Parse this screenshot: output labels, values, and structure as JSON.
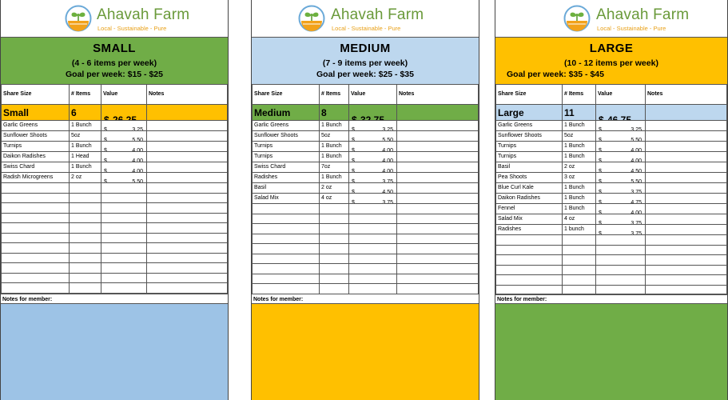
{
  "brand": {
    "name": "Ahavah Farm",
    "tagline": "Local - Sustainable - Pure"
  },
  "columns": {
    "share_size": "Share Size",
    "items": "# Items",
    "value": "Value",
    "notes": "Notes"
  },
  "currency": "$",
  "notes_label": "Notes for member:",
  "colors": {
    "green": "#70ad47",
    "light_blue": "#bdd7ee",
    "gold": "#ffc000",
    "notes_blue": "#9dc3e6"
  },
  "shares": [
    {
      "size_title": "SMALL",
      "items_per_week": "(4 - 6 items per week)",
      "goal": "Goal per week: $15 - $25",
      "summary": {
        "name": "Small",
        "count": "6",
        "value": "26.25"
      },
      "rows": [
        {
          "item": "Garlic Greens",
          "qty": "1 Bunch",
          "value": "3.25"
        },
        {
          "item": "Sunflower Shoots",
          "qty": "5oz",
          "value": "5.50"
        },
        {
          "item": "Turnips",
          "qty": "1 Bunch",
          "value": "4.00"
        },
        {
          "item": "Daikon Radishes",
          "qty": "1 Head",
          "value": "4.00"
        },
        {
          "item": "Swiss Chard",
          "qty": "1 Bunch",
          "value": "4.00"
        },
        {
          "item": "Radish Microgreens",
          "qty": "2 oz",
          "value": "5.50"
        }
      ]
    },
    {
      "size_title": "MEDIUM",
      "items_per_week": "(7 - 9 items per week)",
      "goal": "Goal per week: $25 - $35",
      "summary": {
        "name": "Medium",
        "count": "8",
        "value": "32.75"
      },
      "rows": [
        {
          "item": "Garlic Greens",
          "qty": "1 Bunch",
          "value": "3.25"
        },
        {
          "item": "Sunflower Shoots",
          "qty": "5oz",
          "value": "5.50"
        },
        {
          "item": "Turnips",
          "qty": "1 Bunch",
          "value": "4.00"
        },
        {
          "item": "Turnips",
          "qty": "1 Bunch",
          "value": "4.00"
        },
        {
          "item": "Swiss Chard",
          "qty": "7oz",
          "value": "4.00"
        },
        {
          "item": "Radishes",
          "qty": "1 Bunch",
          "value": "3.75"
        },
        {
          "item": "Basil",
          "qty": "2 oz",
          "value": "4.50"
        },
        {
          "item": "Salad Mix",
          "qty": "4 oz",
          "value": "3.75"
        }
      ]
    },
    {
      "size_title": "LARGE",
      "items_per_week": "(10 - 12 items per week)",
      "goal": "Goal per week: $35 - $45",
      "summary": {
        "name": "Large",
        "count": "11",
        "value": "46.75"
      },
      "rows": [
        {
          "item": "Garlic Greens",
          "qty": "1 Bunch",
          "value": "3.25"
        },
        {
          "item": "Sunflower Shoots",
          "qty": "5oz",
          "value": "5.50"
        },
        {
          "item": "Turnips",
          "qty": "1 Bunch",
          "value": "4.00"
        },
        {
          "item": "Turnips",
          "qty": "1 Bunch",
          "value": "4.00"
        },
        {
          "item": "Basil",
          "qty": "2 oz",
          "value": "4.50"
        },
        {
          "item": "Pea Shoots",
          "qty": "3 oz",
          "value": "5.50"
        },
        {
          "item": "Blue Curl Kale",
          "qty": "1 Bunch",
          "value": "3.75"
        },
        {
          "item": "Daikon Radishes",
          "qty": "1 Bunch",
          "value": "4.75"
        },
        {
          "item": "Fennel",
          "qty": "1 Bunch",
          "value": "4.00"
        },
        {
          "item": "Salad Mix",
          "qty": "4 oz",
          "value": "3.75"
        },
        {
          "item": "Radishes",
          "qty": "1 bunch",
          "value": "3.75"
        }
      ]
    }
  ]
}
